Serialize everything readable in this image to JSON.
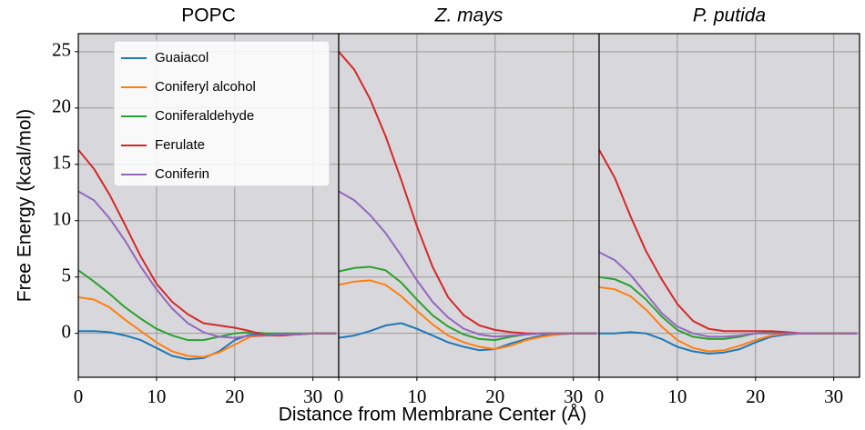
{
  "shared": {
    "x_label": "Distance from Membrane Center (Å)",
    "y_label": "Free Energy (kcal/mol)"
  },
  "chart_data": [
    {
      "type": "line",
      "title": "POPC",
      "legend": "upper right",
      "x": [
        0,
        2,
        4,
        6,
        8,
        10,
        12,
        14,
        16,
        18,
        20,
        22,
        24,
        26,
        28,
        30,
        33
      ],
      "xlim": [
        0,
        33.3
      ],
      "ylim": [
        -3.9,
        26.6
      ],
      "xticks": [
        0,
        10,
        20,
        30
      ],
      "yticks": [
        0,
        5,
        10,
        15,
        20,
        25
      ],
      "grid": true,
      "series": [
        {
          "name": "Guaiacol",
          "color": "#1f77b4",
          "values": [
            0.2,
            0.2,
            0.1,
            -0.2,
            -0.6,
            -1.3,
            -2.0,
            -2.3,
            -2.2,
            -1.6,
            -0.6,
            -0.1,
            -0.1,
            -0.1,
            -0.1,
            0,
            0
          ]
        },
        {
          "name": "Coniferyl alcohol",
          "color": "#ff7f0e",
          "values": [
            3.2,
            3.0,
            2.3,
            1.2,
            0.2,
            -0.8,
            -1.6,
            -2.0,
            -2.1,
            -1.7,
            -1.0,
            -0.3,
            -0.2,
            -0.1,
            -0.1,
            0,
            0
          ]
        },
        {
          "name": "Coniferaldehyde",
          "color": "#2ca02c",
          "values": [
            5.6,
            4.6,
            3.5,
            2.3,
            1.3,
            0.4,
            -0.2,
            -0.6,
            -0.6,
            -0.3,
            0,
            0.1,
            0,
            0,
            0,
            0,
            0
          ]
        },
        {
          "name": "Ferulate",
          "color": "#d62728",
          "values": [
            16.3,
            14.6,
            12.3,
            9.6,
            6.8,
            4.4,
            2.8,
            1.7,
            0.9,
            0.7,
            0.5,
            0.2,
            -0.2,
            -0.2,
            -0.1,
            0,
            0
          ]
        },
        {
          "name": "Coniferin",
          "color": "#9467bd",
          "values": [
            12.6,
            11.8,
            10.2,
            8.2,
            5.9,
            3.9,
            2.2,
            0.9,
            0.1,
            -0.3,
            -0.4,
            -0.2,
            -0.2,
            -0.1,
            -0.1,
            0,
            0
          ]
        }
      ]
    },
    {
      "type": "line",
      "title": "Z. mays",
      "x": [
        0,
        2,
        4,
        6,
        8,
        10,
        12,
        14,
        16,
        18,
        20,
        22,
        24,
        26,
        28,
        30,
        33
      ],
      "xlim": [
        0,
        33.3
      ],
      "ylim": [
        -3.9,
        26.6
      ],
      "xticks": [
        0,
        10,
        20,
        30
      ],
      "yticks": [
        0,
        5,
        10,
        15,
        20,
        25
      ],
      "grid": true,
      "series": [
        {
          "color": "#1f77b4",
          "values": [
            -0.4,
            -0.2,
            0.2,
            0.7,
            0.9,
            0.4,
            -0.2,
            -0.8,
            -1.2,
            -1.5,
            -1.4,
            -0.9,
            -0.5,
            -0.2,
            -0.1,
            0,
            0
          ]
        },
        {
          "color": "#ff7f0e",
          "values": [
            4.3,
            4.6,
            4.7,
            4.3,
            3.3,
            2.0,
            0.8,
            -0.2,
            -0.8,
            -1.2,
            -1.4,
            -1.1,
            -0.6,
            -0.3,
            -0.1,
            0,
            0
          ]
        },
        {
          "color": "#2ca02c",
          "values": [
            5.5,
            5.8,
            5.9,
            5.6,
            4.5,
            3.0,
            1.6,
            0.6,
            -0.1,
            -0.5,
            -0.6,
            -0.3,
            -0.1,
            0,
            0,
            0,
            0
          ]
        },
        {
          "color": "#d62728",
          "values": [
            25.0,
            23.4,
            20.8,
            17.5,
            13.6,
            9.5,
            5.9,
            3.2,
            1.6,
            0.7,
            0.3,
            0.1,
            0,
            0,
            0,
            0,
            0
          ]
        },
        {
          "color": "#9467bd",
          "values": [
            12.6,
            11.8,
            10.5,
            8.9,
            6.9,
            4.7,
            2.8,
            1.4,
            0.4,
            -0.1,
            -0.3,
            -0.2,
            -0.1,
            0,
            0,
            0,
            0
          ]
        }
      ]
    },
    {
      "type": "line",
      "title": "P. putida",
      "x": [
        0,
        2,
        4,
        6,
        8,
        10,
        12,
        14,
        16,
        18,
        20,
        22,
        24,
        26,
        28,
        30,
        33
      ],
      "xlim": [
        0,
        33.3
      ],
      "ylim": [
        -3.9,
        26.6
      ],
      "xticks": [
        0,
        10,
        20,
        30
      ],
      "yticks": [
        0,
        5,
        10,
        15,
        20,
        25
      ],
      "grid": true,
      "series": [
        {
          "color": "#1f77b4",
          "values": [
            0,
            0,
            0.1,
            0,
            -0.5,
            -1.2,
            -1.6,
            -1.8,
            -1.7,
            -1.4,
            -0.8,
            -0.3,
            -0.1,
            0,
            0,
            0,
            0
          ]
        },
        {
          "color": "#ff7f0e",
          "values": [
            4.1,
            3.9,
            3.3,
            2.1,
            0.6,
            -0.6,
            -1.3,
            -1.6,
            -1.5,
            -1.1,
            -0.6,
            -0.2,
            0,
            0,
            0,
            0,
            0
          ]
        },
        {
          "color": "#2ca02c",
          "values": [
            5.0,
            4.8,
            4.2,
            3.0,
            1.5,
            0.3,
            -0.3,
            -0.5,
            -0.5,
            -0.3,
            0,
            0.1,
            0,
            0,
            0,
            0,
            0
          ]
        },
        {
          "color": "#d62728",
          "values": [
            16.3,
            13.8,
            10.4,
            7.3,
            4.8,
            2.6,
            1.1,
            0.4,
            0.2,
            0.2,
            0.2,
            0.2,
            0.1,
            0,
            0,
            0,
            0
          ]
        },
        {
          "color": "#9467bd",
          "values": [
            7.2,
            6.5,
            5.2,
            3.5,
            1.8,
            0.6,
            0,
            -0.3,
            -0.3,
            -0.2,
            0,
            0,
            0,
            0,
            0,
            0,
            0
          ]
        }
      ]
    }
  ]
}
